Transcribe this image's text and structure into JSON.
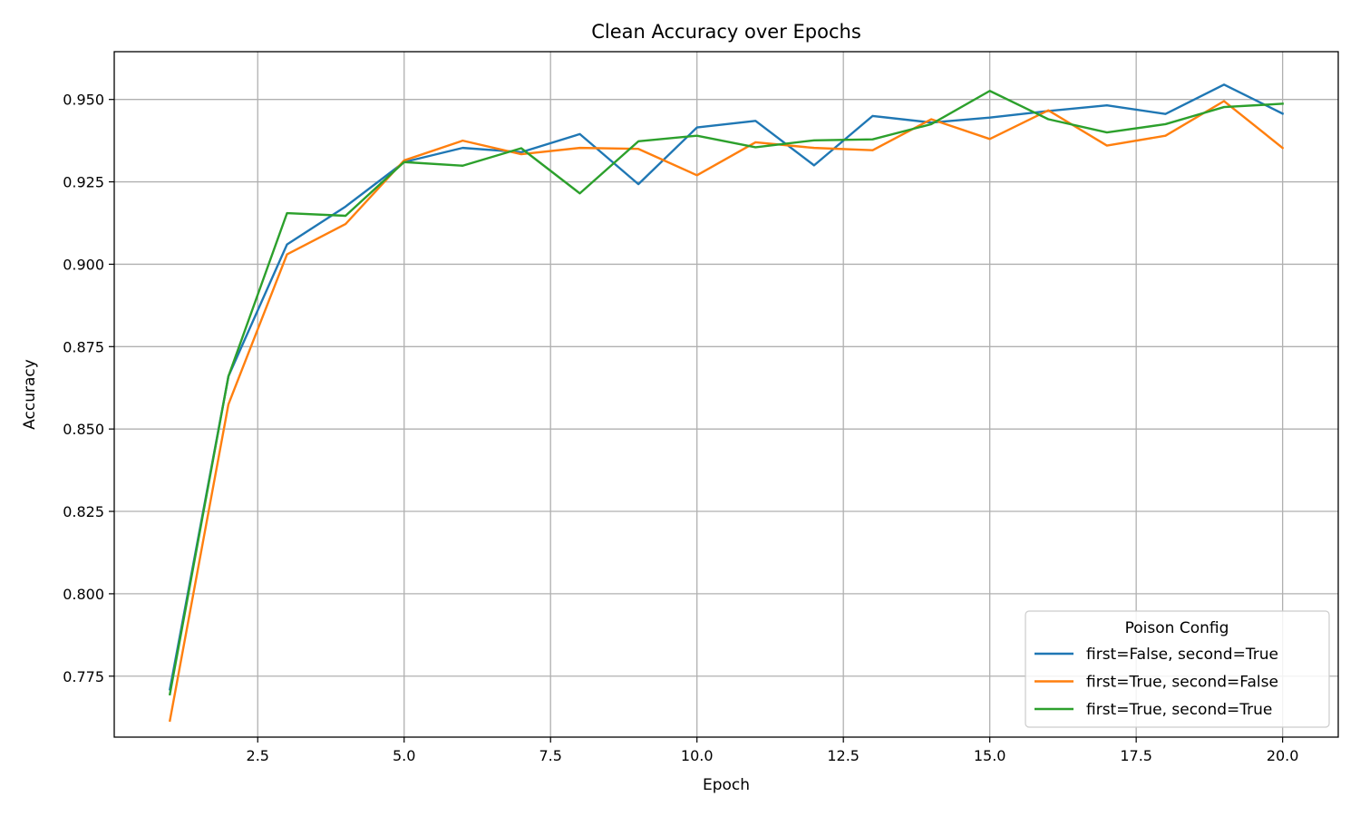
{
  "chart_data": {
    "type": "line",
    "title": "Clean Accuracy over Epochs",
    "xlabel": "Epoch",
    "ylabel": "Accuracy",
    "xlim": [
      0.05,
      20.95
    ],
    "ylim": [
      0.7565,
      0.9645
    ],
    "xticks": [
      2.5,
      5.0,
      7.5,
      10.0,
      12.5,
      15.0,
      17.5,
      20.0
    ],
    "xtick_labels": [
      "2.5",
      "5.0",
      "7.5",
      "10.0",
      "12.5",
      "15.0",
      "17.5",
      "20.0"
    ],
    "yticks": [
      0.775,
      0.8,
      0.825,
      0.85,
      0.875,
      0.9,
      0.925,
      0.95
    ],
    "ytick_labels": [
      "0.775",
      "0.800",
      "0.825",
      "0.850",
      "0.875",
      "0.900",
      "0.925",
      "0.950"
    ],
    "grid": true,
    "legend": {
      "title": "Poison Config",
      "placement": "lower-right"
    },
    "x": [
      1,
      2,
      3,
      4,
      5,
      6,
      7,
      8,
      9,
      10,
      11,
      12,
      13,
      14,
      15,
      16,
      17,
      18,
      19,
      20
    ],
    "series": [
      {
        "name": "first=False, second=True",
        "color": "#1f77b4",
        "values": [
          0.771,
          0.866,
          0.906,
          0.9175,
          0.931,
          0.9353,
          0.934,
          0.9395,
          0.9243,
          0.9415,
          0.9435,
          0.93,
          0.945,
          0.943,
          0.9445,
          0.9465,
          0.9482,
          0.9456,
          0.9545,
          0.9457
        ]
      },
      {
        "name": "first=True, second=False",
        "color": "#ff7f0e",
        "values": [
          0.7615,
          0.8575,
          0.903,
          0.9122,
          0.9315,
          0.9375,
          0.9334,
          0.9353,
          0.935,
          0.927,
          0.937,
          0.9353,
          0.9346,
          0.944,
          0.938,
          0.9467,
          0.936,
          0.939,
          0.9495,
          0.9353
        ]
      },
      {
        "name": "first=True, second=True",
        "color": "#2ca02c",
        "values": [
          0.7695,
          0.866,
          0.9155,
          0.9147,
          0.931,
          0.9299,
          0.9352,
          0.9215,
          0.9373,
          0.939,
          0.9355,
          0.9376,
          0.9379,
          0.9425,
          0.9526,
          0.944,
          0.94,
          0.9425,
          0.9477,
          0.9487
        ]
      }
    ]
  }
}
